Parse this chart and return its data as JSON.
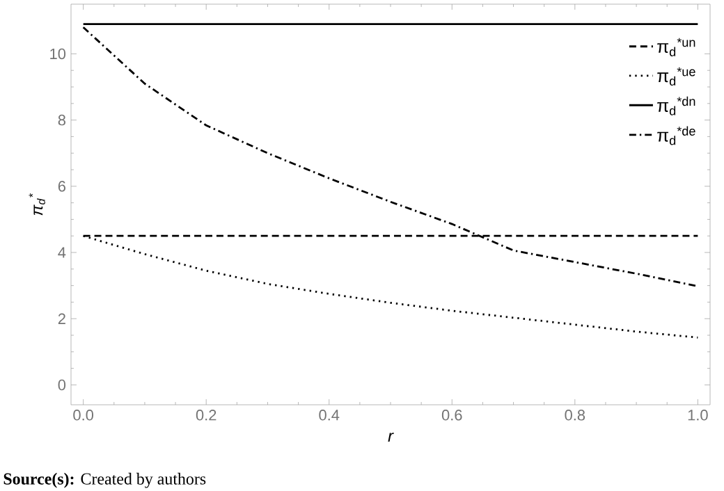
{
  "chart_data": {
    "type": "line",
    "xlabel": "r",
    "ylabel": "π$_{d}$$^{*}$",
    "x": [
      0,
      0.1,
      0.2,
      0.3,
      0.4,
      0.5,
      0.6,
      0.7,
      0.8,
      0.9,
      1.0
    ],
    "series": [
      {
        "name": "π$_{d}$$^{*un}$",
        "color": "#000000",
        "line_style": "dashed",
        "values": [
          4.5,
          4.5,
          4.5,
          4.5,
          4.5,
          4.5,
          4.5,
          4.5,
          4.5,
          4.5,
          4.5
        ]
      },
      {
        "name": "π$_{d}$$^{*ue}$",
        "color": "#000000",
        "line_style": "dotted",
        "values": [
          4.5,
          3.95,
          3.45,
          3.05,
          2.75,
          2.48,
          2.24,
          2.03,
          1.82,
          1.61,
          1.43
        ]
      },
      {
        "name": "π$_{d}$$^{*dn}$",
        "color": "#000000",
        "line_style": "solid",
        "values": [
          10.9,
          10.9,
          10.9,
          10.9,
          10.9,
          10.9,
          10.9,
          10.9,
          10.9,
          10.9,
          10.9
        ]
      },
      {
        "name": "π$_{d}$$^{*de}$",
        "color": "#000000",
        "line_style": "dashdotted",
        "values": [
          10.8,
          9.1,
          7.84,
          7.0,
          6.24,
          5.53,
          4.86,
          4.06,
          3.71,
          3.36,
          2.98
        ]
      }
    ],
    "xlim": [
      -0.02,
      1.02
    ],
    "ylim": [
      -0.6,
      11.5
    ],
    "xticks": [
      {
        "value": 0,
        "label": "0.0"
      },
      0.2,
      0.4,
      0.6,
      0.8,
      {
        "value": 1,
        "label": "1.0"
      }
    ],
    "yticks": [
      0,
      2,
      4,
      6,
      8,
      10
    ],
    "legend": "top right",
    "grid": false,
    "marker": "none",
    "annotations": [
      "**Source(s):** Created by authors"
    ]
  }
}
